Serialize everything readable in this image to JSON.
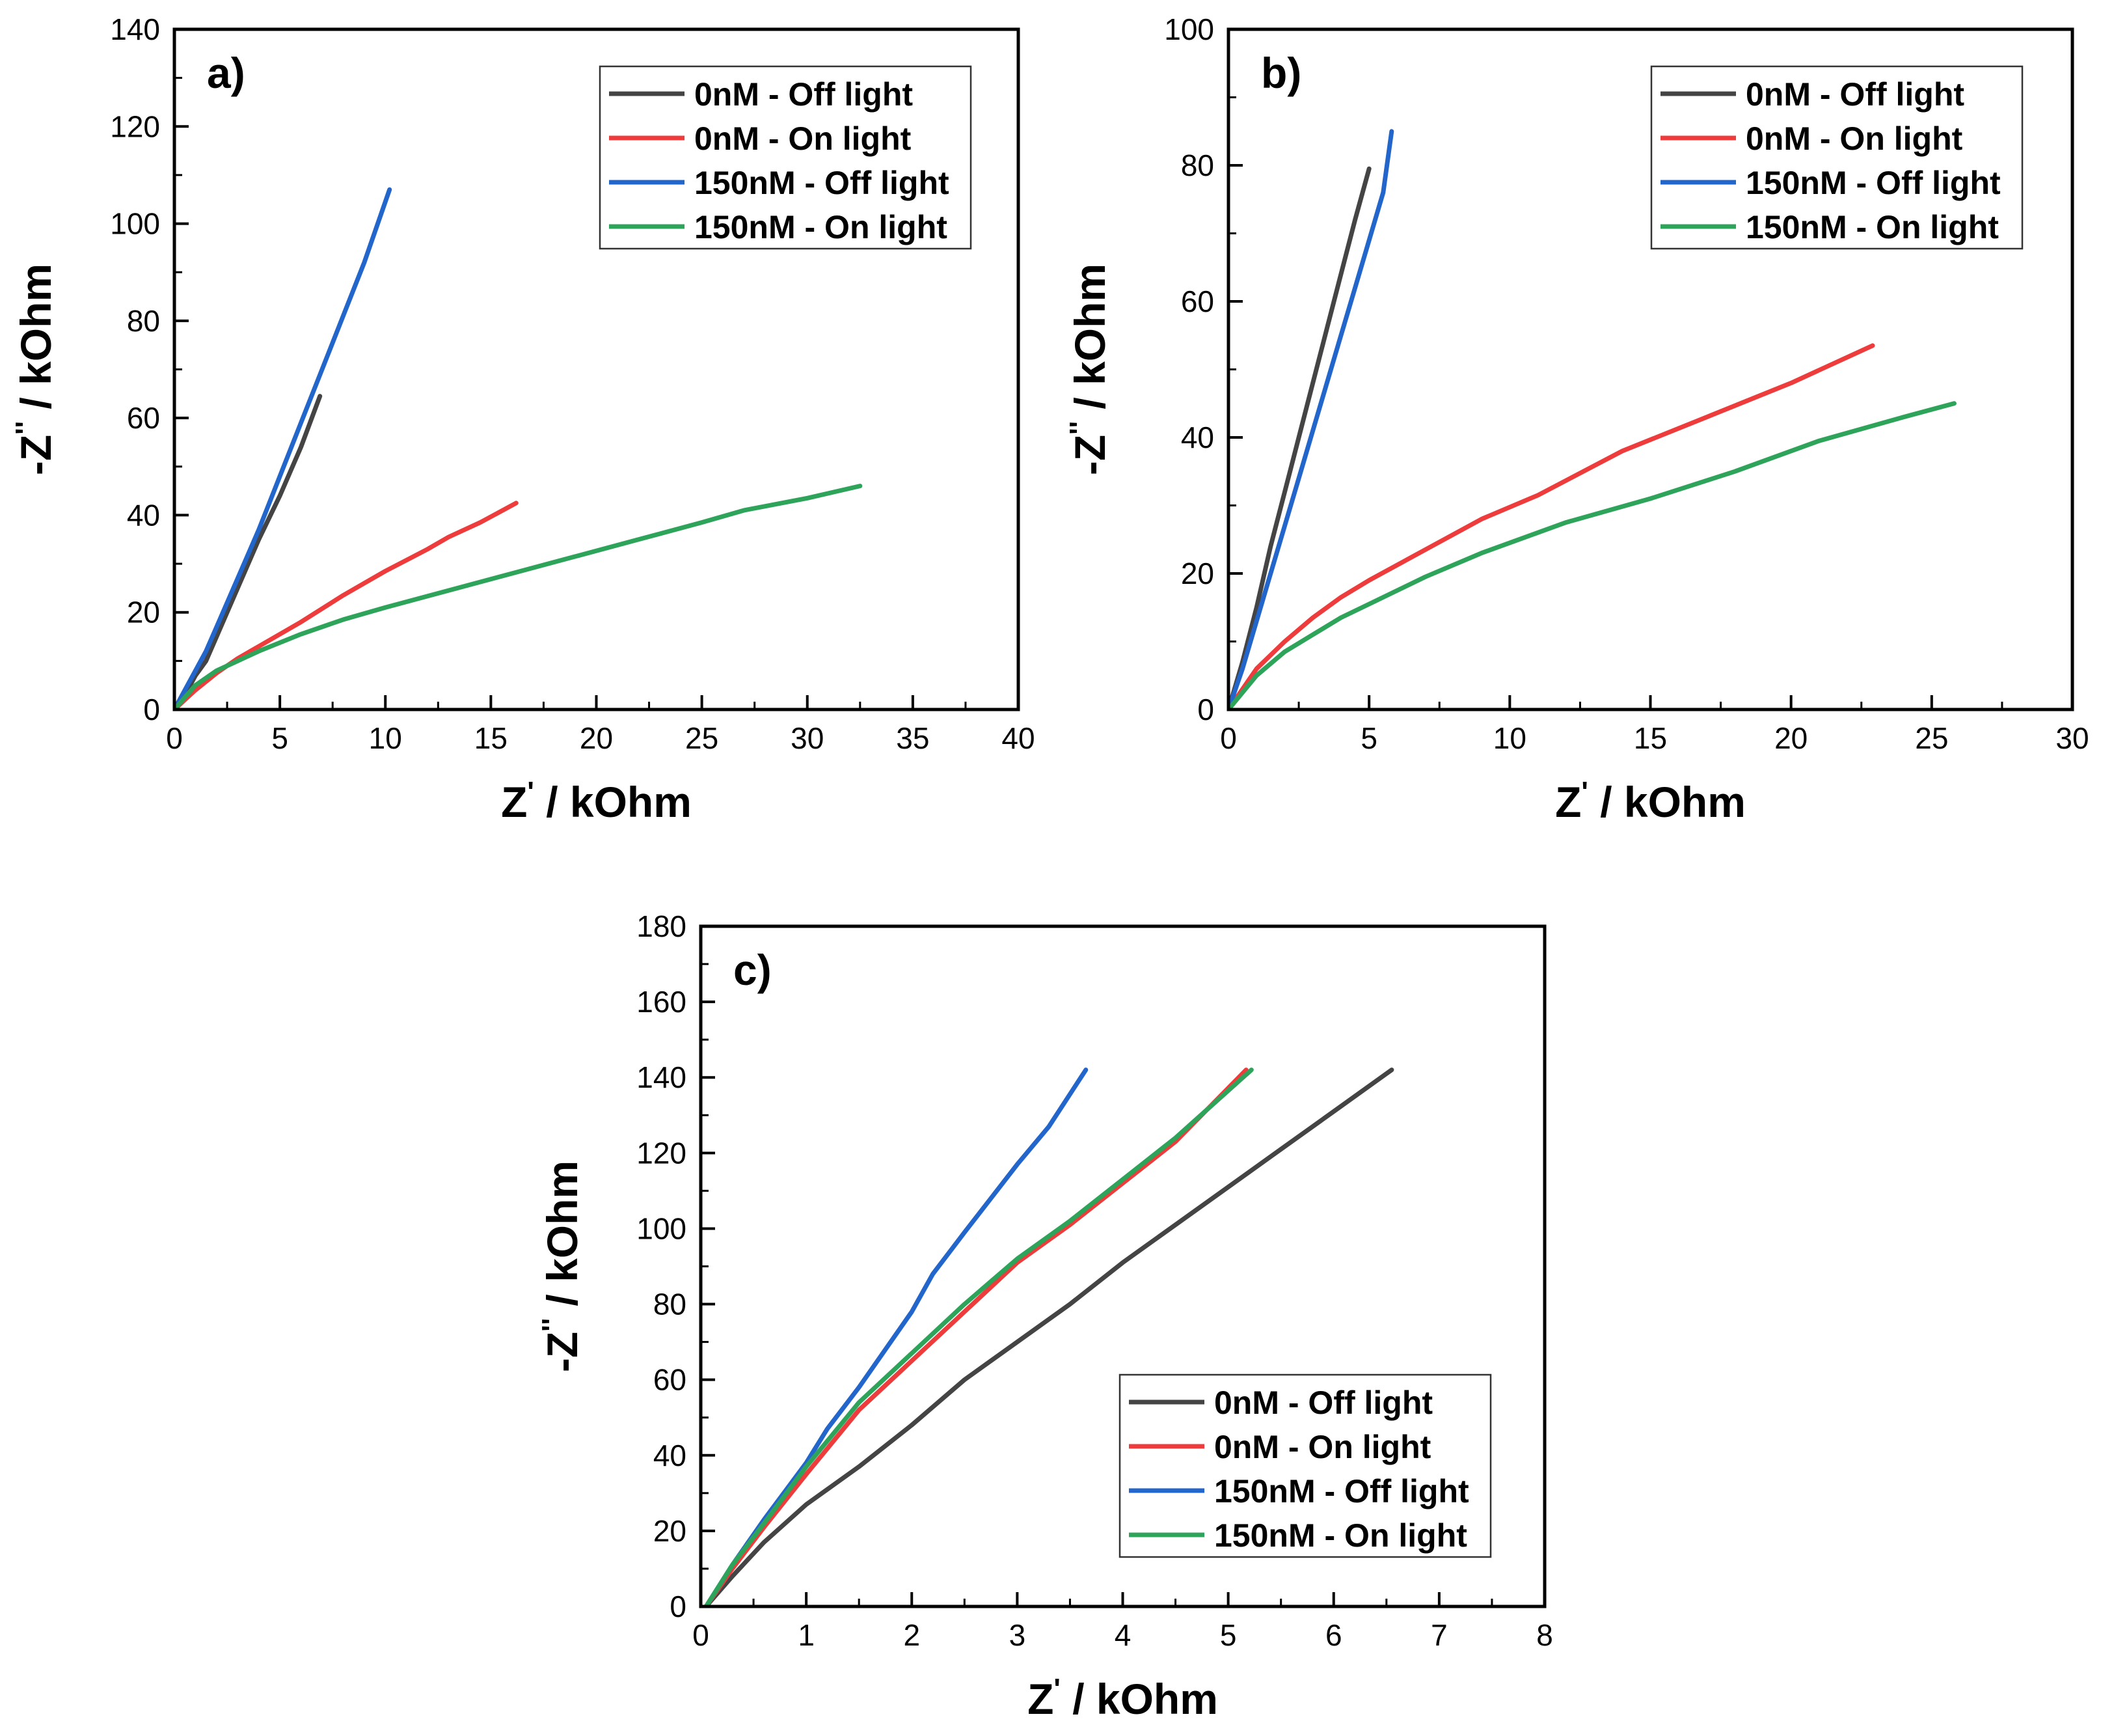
{
  "colors": {
    "0nM - Off light": "#444444",
    "0nM - On light": "#ee3b3b",
    "150nM - Off light": "#2266cc",
    "150nM - On light": "#2ea35a"
  },
  "chart_data": [
    {
      "type": "line",
      "panel_label": "a)",
      "xlabel": "Z' / kOhm",
      "ylabel": "-Z'' / kOhm",
      "xlim": [
        0,
        40
      ],
      "ylim": [
        0,
        140
      ],
      "xticks": [
        0,
        5,
        10,
        15,
        20,
        25,
        30,
        35,
        40
      ],
      "yticks": [
        0,
        20,
        40,
        60,
        80,
        100,
        120,
        140
      ],
      "legend_position": "top-right",
      "series": [
        {
          "name": "0nM - Off light",
          "points": [
            [
              0,
              0
            ],
            [
              0.5,
              3
            ],
            [
              1,
              7
            ],
            [
              1.5,
              10
            ],
            [
              2,
              15
            ],
            [
              3,
              25
            ],
            [
              4,
              35
            ],
            [
              5,
              44
            ],
            [
              6,
              54
            ],
            [
              6.9,
              64.5
            ]
          ]
        },
        {
          "name": "0nM - On light",
          "points": [
            [
              0,
              0
            ],
            [
              1,
              4
            ],
            [
              2,
              7.5
            ],
            [
              3,
              10.5
            ],
            [
              4,
              13
            ],
            [
              6,
              18
            ],
            [
              8,
              23.5
            ],
            [
              10,
              28.5
            ],
            [
              12,
              33
            ],
            [
              13,
              35.5
            ],
            [
              14.5,
              38.5
            ],
            [
              16.2,
              42.5
            ]
          ]
        },
        {
          "name": "150nM - Off light",
          "points": [
            [
              0,
              0
            ],
            [
              0.5,
              4
            ],
            [
              1,
              8
            ],
            [
              1.5,
              12
            ],
            [
              2,
              17
            ],
            [
              3,
              27
            ],
            [
              4,
              37
            ],
            [
              5,
              48
            ],
            [
              6,
              59
            ],
            [
              7,
              70
            ],
            [
              8,
              81
            ],
            [
              9,
              92
            ],
            [
              10.2,
              107
            ]
          ]
        },
        {
          "name": "150nM - On light",
          "points": [
            [
              0,
              0
            ],
            [
              1,
              5
            ],
            [
              2,
              8
            ],
            [
              3,
              10
            ],
            [
              4,
              12
            ],
            [
              6,
              15.5
            ],
            [
              8,
              18.5
            ],
            [
              10,
              21
            ],
            [
              13,
              24.5
            ],
            [
              16,
              28
            ],
            [
              19,
              31.5
            ],
            [
              22,
              35
            ],
            [
              25,
              38.5
            ],
            [
              27,
              41
            ],
            [
              30,
              43.5
            ],
            [
              32.5,
              46
            ]
          ]
        }
      ]
    },
    {
      "type": "line",
      "panel_label": "b)",
      "xlabel": "Z' / kOhm",
      "ylabel": "-Z'' / kOhm",
      "xlim": [
        0,
        30
      ],
      "ylim": [
        0,
        100
      ],
      "xticks": [
        0,
        5,
        10,
        15,
        20,
        25,
        30
      ],
      "yticks": [
        0,
        20,
        40,
        60,
        80,
        100
      ],
      "legend_position": "top-right",
      "series": [
        {
          "name": "0nM - Off light",
          "points": [
            [
              0,
              0
            ],
            [
              0.5,
              7
            ],
            [
              1,
              15
            ],
            [
              1.5,
              24
            ],
            [
              2,
              32
            ],
            [
              2.5,
              40
            ],
            [
              3,
              48
            ],
            [
              3.5,
              56
            ],
            [
              4,
              64
            ],
            [
              4.5,
              72
            ],
            [
              5,
              79.5
            ]
          ]
        },
        {
          "name": "0nM - On light",
          "points": [
            [
              0,
              0
            ],
            [
              0.5,
              3
            ],
            [
              1,
              6
            ],
            [
              2,
              10
            ],
            [
              3,
              13.5
            ],
            [
              4,
              16.5
            ],
            [
              5,
              19
            ],
            [
              7,
              23.5
            ],
            [
              9,
              28
            ],
            [
              11,
              31.5
            ],
            [
              14,
              38
            ],
            [
              17,
              43
            ],
            [
              20,
              48
            ],
            [
              22.9,
              53.5
            ]
          ]
        },
        {
          "name": "150nM - Off light",
          "points": [
            [
              0,
              0
            ],
            [
              0.5,
              6
            ],
            [
              1,
              13
            ],
            [
              1.5,
              20
            ],
            [
              2,
              27
            ],
            [
              2.5,
              34
            ],
            [
              3,
              41
            ],
            [
              3.5,
              48
            ],
            [
              4,
              55
            ],
            [
              4.5,
              62
            ],
            [
              5,
              69
            ],
            [
              5.5,
              76
            ],
            [
              5.8,
              85
            ]
          ]
        },
        {
          "name": "150nM - On light",
          "points": [
            [
              0,
              0
            ],
            [
              0.5,
              2.5
            ],
            [
              1,
              5
            ],
            [
              2,
              8.5
            ],
            [
              3,
              11
            ],
            [
              4,
              13.5
            ],
            [
              5,
              15.5
            ],
            [
              7,
              19.5
            ],
            [
              9,
              23
            ],
            [
              12,
              27.5
            ],
            [
              15,
              31
            ],
            [
              18,
              35
            ],
            [
              21,
              39.5
            ],
            [
              24,
              43
            ],
            [
              25.8,
              45
            ]
          ]
        }
      ]
    },
    {
      "type": "line",
      "panel_label": "c)",
      "xlabel": "Z' / kOhm",
      "ylabel": "-Z'' / kOhm",
      "xlim": [
        0,
        8
      ],
      "ylim": [
        0,
        180
      ],
      "xticks": [
        0,
        1,
        2,
        3,
        4,
        5,
        6,
        7,
        8
      ],
      "yticks": [
        0,
        20,
        40,
        60,
        80,
        100,
        120,
        140,
        160,
        180
      ],
      "legend_position": "bottom-right",
      "series": [
        {
          "name": "0nM - Off light",
          "points": [
            [
              0.05,
              0
            ],
            [
              0.3,
              8
            ],
            [
              0.6,
              17
            ],
            [
              1,
              27
            ],
            [
              1.5,
              37
            ],
            [
              2,
              48
            ],
            [
              2.5,
              60
            ],
            [
              3,
              70
            ],
            [
              3.5,
              80
            ],
            [
              4,
              91
            ],
            [
              4.5,
              101
            ],
            [
              5,
              111
            ],
            [
              5.5,
              121
            ],
            [
              6,
              131
            ],
            [
              6.55,
              142
            ]
          ]
        },
        {
          "name": "0nM - On light",
          "points": [
            [
              0.05,
              0
            ],
            [
              0.3,
              10
            ],
            [
              0.6,
              21
            ],
            [
              1,
              35
            ],
            [
              1.5,
              52
            ],
            [
              2,
              65
            ],
            [
              2.5,
              78
            ],
            [
              3,
              91
            ],
            [
              3.5,
              101
            ],
            [
              4,
              112
            ],
            [
              4.5,
              123
            ],
            [
              5.17,
              142
            ]
          ]
        },
        {
          "name": "150nM - Off light",
          "points": [
            [
              0.05,
              0
            ],
            [
              0.3,
              11
            ],
            [
              0.6,
              23
            ],
            [
              1,
              38
            ],
            [
              1.2,
              47
            ],
            [
              1.5,
              58
            ],
            [
              2,
              78
            ],
            [
              2.2,
              88
            ],
            [
              2.5,
              99
            ],
            [
              3,
              117
            ],
            [
              3.3,
              127
            ],
            [
              3.65,
              142
            ]
          ]
        },
        {
          "name": "150nM - On light",
          "points": [
            [
              0.05,
              0
            ],
            [
              0.3,
              11
            ],
            [
              0.6,
              22
            ],
            [
              1,
              37
            ],
            [
              1.5,
              54
            ],
            [
              2,
              67
            ],
            [
              2.5,
              80
            ],
            [
              3,
              92
            ],
            [
              3.5,
              102
            ],
            [
              4,
              113
            ],
            [
              4.5,
              124
            ],
            [
              5.22,
              142
            ]
          ]
        }
      ]
    }
  ]
}
